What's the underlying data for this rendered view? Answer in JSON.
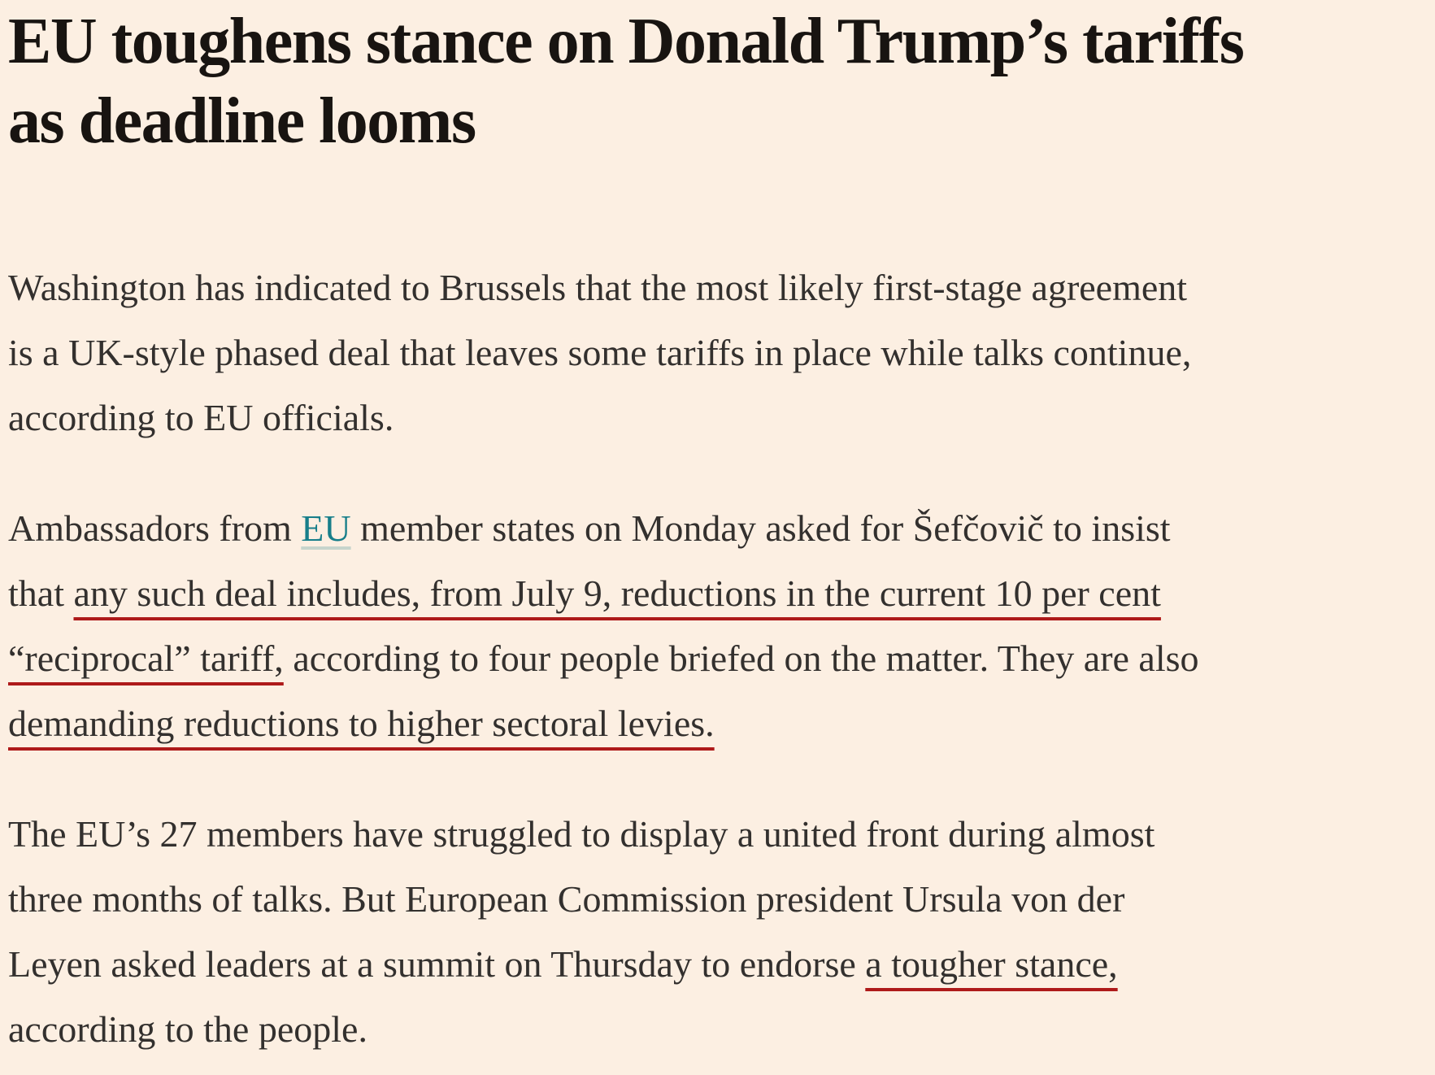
{
  "page": {
    "colors": {
      "background": "#FCEFE2",
      "body_text": "#33302E",
      "headline_text": "#181411",
      "link_color": "#177E8A",
      "link_underline_color": "#C7D4CC",
      "annotation_underline_color": "#AE1A1A"
    }
  },
  "article": {
    "headline": "EU toughens stance on Donald Trump’s tariffs as deadline looms",
    "headline_lines": [
      "EU toughens stance on Donald Trump’s tariffs",
      "as deadline looms"
    ],
    "link_label": "EU",
    "annotated_phrases": [
      "any such deal includes, from July 9, reductions in the current 10 per cent “reciprocal” tariff,",
      "demanding reductions to higher sectoral levies.",
      "a tougher stance,"
    ],
    "paragraphs": [
      {
        "name": "para-1",
        "lines": [
          [
            {
              "t": "Washington has indicated to Brussels that the most likely first-stage agreement",
              "s": "p"
            }
          ],
          [
            {
              "t": "is a UK-style phased deal that leaves some tariffs in place while talks continue,",
              "s": "p"
            }
          ],
          [
            {
              "t": "according to EU officials.",
              "s": "p"
            }
          ]
        ]
      },
      {
        "name": "para-2",
        "lines": [
          [
            {
              "t": "Ambassadors from ",
              "s": "p"
            },
            {
              "t": "EU",
              "s": "link"
            },
            {
              "t": " member states on Monday asked for Šefčovič to insist",
              "s": "p"
            }
          ],
          [
            {
              "t": "that ",
              "s": "p"
            },
            {
              "t": "any such deal includes, from July 9, reductions in the current 10 per cent",
              "s": "mark"
            }
          ],
          [
            {
              "t": "“reciprocal” tariff,",
              "s": "mark"
            },
            {
              "t": " according to four people briefed on the matter. They are also",
              "s": "p"
            }
          ],
          [
            {
              "t": "demanding reductions to higher sectoral levies.",
              "s": "mark"
            }
          ]
        ]
      },
      {
        "name": "para-3",
        "lines": [
          [
            {
              "t": "The EU’s 27 members have struggled to display a united front during almost",
              "s": "p"
            }
          ],
          [
            {
              "t": "three months of talks. But European Commission president Ursula von der",
              "s": "p"
            }
          ],
          [
            {
              "t": "Leyen asked leaders at a summit on Thursday to endorse ",
              "s": "p"
            },
            {
              "t": "a tougher stance,",
              "s": "mark"
            }
          ],
          [
            {
              "t": "according to the people.",
              "s": "p"
            }
          ]
        ]
      }
    ]
  }
}
